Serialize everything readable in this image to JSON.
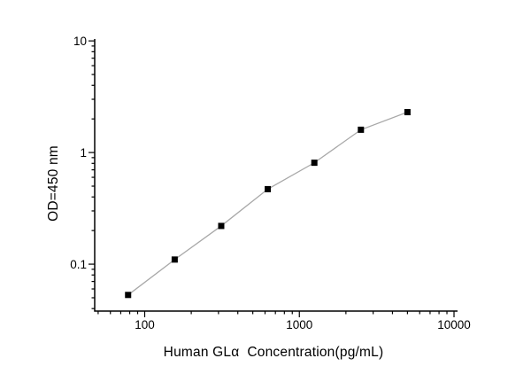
{
  "figure": {
    "background": "#ffffff"
  },
  "chart_data": {
    "type": "line",
    "title": "",
    "xlabel": "Human GLα  Concentration(pg/mL)",
    "ylabel": "OD=450 nm",
    "x_scale": "log",
    "y_scale": "log",
    "x_range": [
      47.5,
      10540
    ],
    "y_range": [
      0.038,
      10.4
    ],
    "x": [
      78.1,
      156.3,
      312.5,
      625,
      1250,
      2500,
      5000
    ],
    "y": [
      0.053,
      0.11,
      0.22,
      0.47,
      0.81,
      1.6,
      2.3
    ],
    "x_major_ticks": [
      100,
      1000,
      10000
    ],
    "x_tick_labels": [
      "100",
      "1000",
      "10000"
    ],
    "y_major_ticks": [
      0.1,
      1,
      10
    ],
    "y_tick_labels": [
      "0.1",
      "1",
      "10"
    ],
    "grid": false,
    "legend": null,
    "colors": {
      "axis": "#000000",
      "line": "#a8a8a8",
      "marker": "#000000",
      "text": "#000000"
    },
    "marker_shape": "square"
  }
}
